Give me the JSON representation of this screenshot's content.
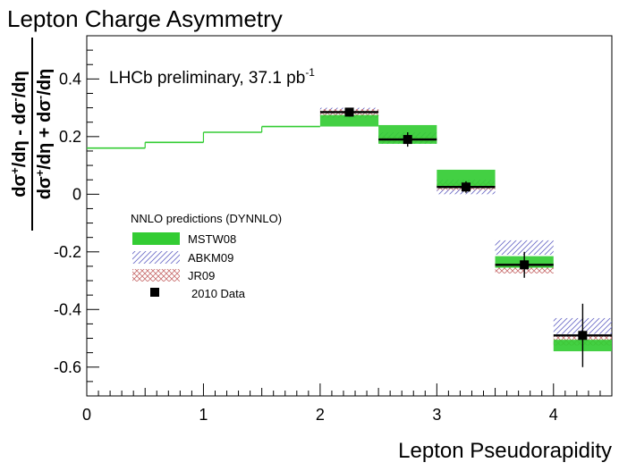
{
  "chart_data": {
    "type": "scatter",
    "title": "Lepton Charge Asymmetry",
    "annotation_main": "LHCb preliminary, 37.1 pb",
    "annotation_sup": "-1",
    "xlabel": "Lepton Pseudorapidity",
    "ylabel": "(dσ+/dη - dσ-/dη) / (dσ+/dη + dσ-/dη)",
    "ylabel_num": [
      "dσ",
      "+",
      "/dη - dσ",
      "-",
      "/dη"
    ],
    "ylabel_den": [
      "dσ",
      "+",
      "/dη + dσ",
      "-",
      "/dη"
    ],
    "xlim": [
      0,
      4.5
    ],
    "ylim": [
      -0.7,
      0.55
    ],
    "xticks": [
      {
        "value": 0,
        "label": "0"
      },
      {
        "value": 1,
        "label": "1"
      },
      {
        "value": 2,
        "label": "2"
      },
      {
        "value": 3,
        "label": "3"
      },
      {
        "value": 4,
        "label": "4"
      }
    ],
    "yticks": [
      {
        "value": 0.4,
        "label": "0.4"
      },
      {
        "value": 0.2,
        "label": "0.2"
      },
      {
        "value": 0,
        "label": "0"
      },
      {
        "value": -0.2,
        "label": "-0.2"
      },
      {
        "value": -0.4,
        "label": "-0.4"
      },
      {
        "value": -0.6,
        "label": "-0.6"
      }
    ],
    "legend": {
      "title": "NNLO predictions (DYNNLO)",
      "position": "center-left",
      "entries": [
        {
          "key": "mstw",
          "label": "MSTW08"
        },
        {
          "key": "abkm",
          "label": "ABKM09"
        },
        {
          "key": "jr",
          "label": "JR09"
        },
        {
          "key": "data",
          "label": "2010 Data"
        }
      ]
    },
    "colors": {
      "mstw": "#33cc33",
      "mstw_dark": "#1a8a1a",
      "abkm": "#6e6ec8",
      "jr": "#c86e6e",
      "data": "#000000",
      "axis": "#000000"
    },
    "mstw_curve": [
      {
        "x0": 0.0,
        "x1": 0.5,
        "y": 0.16
      },
      {
        "x0": 0.5,
        "x1": 1.0,
        "y": 0.18
      },
      {
        "x0": 1.0,
        "x1": 1.5,
        "y": 0.215
      },
      {
        "x0": 1.5,
        "x1": 2.0,
        "y": 0.235
      }
    ],
    "mstw_bands": [
      {
        "x0": 2.0,
        "x1": 2.5,
        "low": 0.235,
        "high": 0.275
      },
      {
        "x0": 2.5,
        "x1": 3.0,
        "low": 0.175,
        "high": 0.24
      },
      {
        "x0": 3.0,
        "x1": 3.5,
        "low": 0.025,
        "high": 0.085
      },
      {
        "x0": 3.5,
        "x1": 4.0,
        "low": -0.255,
        "high": -0.215
      },
      {
        "x0": 4.0,
        "x1": 4.5,
        "low": -0.545,
        "high": -0.505
      }
    ],
    "abkm_bands": [
      {
        "x0": 2.0,
        "x1": 2.5,
        "low": 0.265,
        "high": 0.3
      },
      {
        "x0": 2.5,
        "x1": 3.0,
        "low": 0.175,
        "high": 0.215
      },
      {
        "x0": 3.0,
        "x1": 3.5,
        "low": 0.0,
        "high": 0.05
      },
      {
        "x0": 3.5,
        "x1": 4.0,
        "low": -0.21,
        "high": -0.16
      },
      {
        "x0": 4.0,
        "x1": 4.5,
        "low": -0.485,
        "high": -0.43
      }
    ],
    "jr_bands": [
      {
        "x0": 2.0,
        "x1": 2.5,
        "low": 0.27,
        "high": 0.295
      },
      {
        "x0": 2.5,
        "x1": 3.0,
        "low": 0.18,
        "high": 0.2
      },
      {
        "x0": 3.0,
        "x1": 3.5,
        "low": 0.015,
        "high": 0.04
      },
      {
        "x0": 3.5,
        "x1": 4.0,
        "low": -0.275,
        "high": -0.245
      },
      {
        "x0": 4.0,
        "x1": 4.5,
        "low": -0.525,
        "high": -0.49
      }
    ],
    "data_points": [
      {
        "x": 2.25,
        "y": 0.285,
        "xerr": 0.25,
        "yerr": 0.015
      },
      {
        "x": 2.75,
        "y": 0.19,
        "xerr": 0.25,
        "yerr": 0.025
      },
      {
        "x": 3.25,
        "y": 0.025,
        "xerr": 0.25,
        "yerr": 0.02
      },
      {
        "x": 3.75,
        "y": -0.245,
        "xerr": 0.25,
        "yerr": 0.045
      },
      {
        "x": 4.25,
        "y": -0.49,
        "xerr": 0.25,
        "yerr": 0.11
      }
    ]
  }
}
